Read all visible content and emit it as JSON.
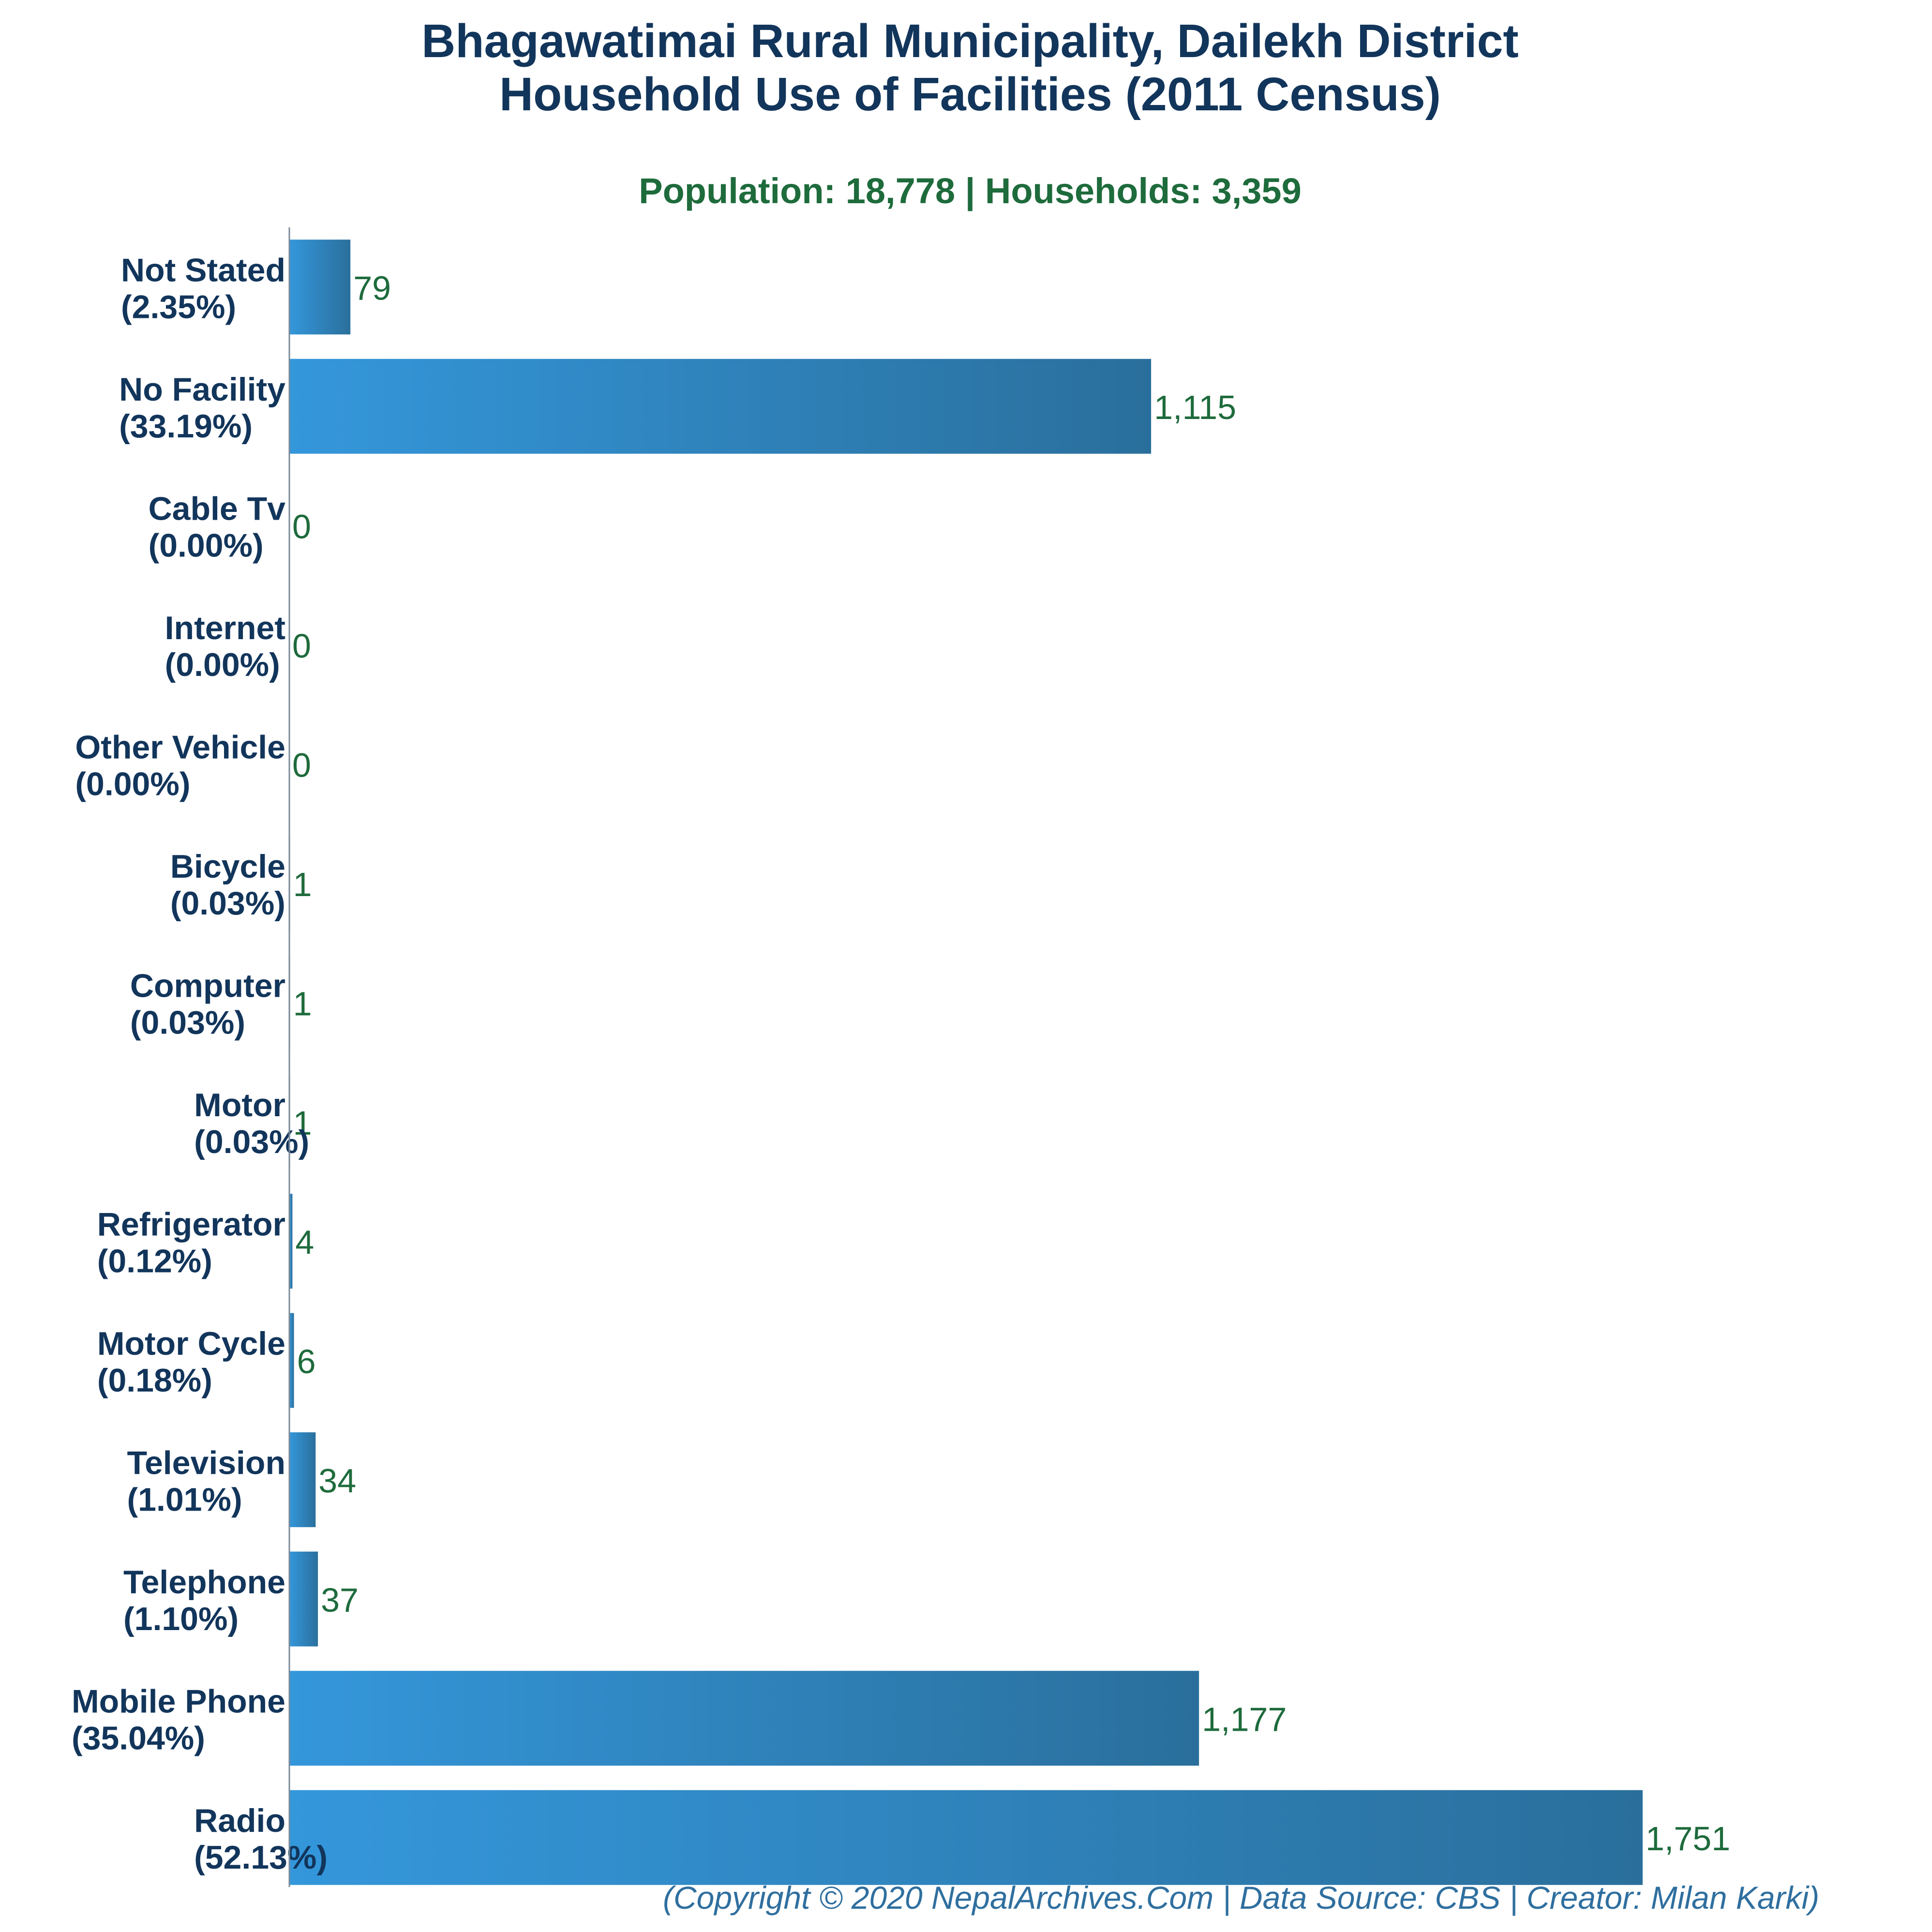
{
  "chart_data": {
    "type": "bar",
    "orientation": "horizontal",
    "title_line1": "Bhagawatimai Rural Municipality, Dailekh District",
    "title_line2": "Household Use of Facilities (2011 Census)",
    "subtitle": "Population: 18,778 | Households: 3,359",
    "categories": [
      "Not Stated",
      "No Facility",
      "Cable Tv",
      "Internet",
      "Other Vehicle",
      "Bicycle",
      "Computer",
      "Motor",
      "Refrigerator",
      "Motor Cycle",
      "Television",
      "Telephone",
      "Mobile Phone",
      "Radio"
    ],
    "percent_labels": [
      "(2.35%)",
      "(33.19%)",
      "(0.00%)",
      "(0.00%)",
      "(0.00%)",
      "(0.03%)",
      "(0.03%)",
      "(0.03%)",
      "(0.12%)",
      "(0.18%)",
      "(1.01%)",
      "(1.10%)",
      "(35.04%)",
      "(52.13%)"
    ],
    "values": [
      79,
      1115,
      0,
      0,
      0,
      1,
      1,
      1,
      4,
      6,
      34,
      37,
      1177,
      1751
    ],
    "value_labels": [
      "79",
      "1,115",
      "0",
      "0",
      "0",
      "1",
      "1",
      "1",
      "4",
      "6",
      "34",
      "37",
      "1,177",
      "1,751"
    ],
    "xlim": [
      0,
      1751
    ],
    "grid": false,
    "legend": "none",
    "colors": {
      "bar_light": "#3497db",
      "bar_dark": "#2a6f9c",
      "title": "#12355b",
      "subtitle": "#1e6b3c",
      "value_label": "#1e6b3c",
      "footer": "#2f6f9f",
      "axis": "#7a8a99"
    }
  },
  "footer": "(Copyright © 2020 NepalArchives.Com | Data Source: CBS | Creator: Milan Karki)"
}
